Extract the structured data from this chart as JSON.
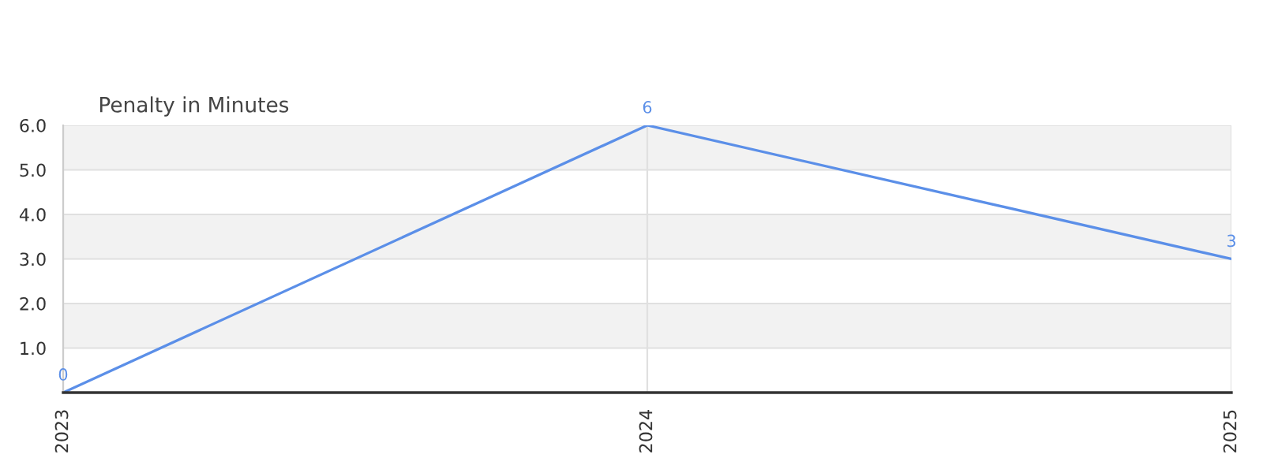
{
  "chart_data": {
    "type": "line",
    "title": "Penalty in Minutes",
    "categories": [
      "2023",
      "2024",
      "2025"
    ],
    "series": [
      {
        "color": "#5b8fe8",
        "values": [
          0,
          6,
          3
        ]
      }
    ],
    "ylim": [
      0,
      6
    ],
    "yticks": [
      {
        "value": 1,
        "label": "1.0"
      },
      {
        "value": 2,
        "label": "2.0"
      },
      {
        "value": 3,
        "label": "3.0"
      },
      {
        "value": 4,
        "label": "4.0"
      },
      {
        "value": 5,
        "label": "5.0"
      },
      {
        "value": 6,
        "label": "6.0"
      }
    ],
    "bands": [
      {
        "axis": "y",
        "from": 1,
        "to": 2,
        "color": "#f2f2f2"
      },
      {
        "axis": "y",
        "from": 3,
        "to": 4,
        "color": "#f2f2f2"
      },
      {
        "axis": "y",
        "from": 5,
        "to": 6,
        "color": "#f2f2f2"
      }
    ],
    "grid": true,
    "data_labels": true,
    "marker": "none",
    "line_style": "solid"
  }
}
